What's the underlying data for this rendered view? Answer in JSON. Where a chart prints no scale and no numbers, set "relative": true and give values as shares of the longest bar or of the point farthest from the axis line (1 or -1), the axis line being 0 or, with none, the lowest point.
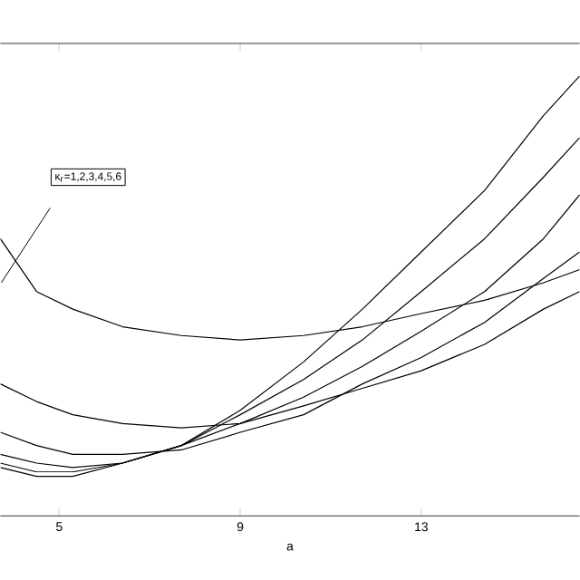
{
  "chart_data": {
    "type": "line",
    "relative": true,
    "xlabel": "a",
    "x": [
      3.7,
      4.5,
      5.3,
      6.4,
      7.7,
      9,
      10.4,
      11.7,
      13,
      14.4,
      15.7,
      16.5
    ],
    "xlim": [
      3.7,
      16.5
    ],
    "xticks": [
      5,
      9,
      13
    ],
    "series": [
      {
        "color": "#000000",
        "values": [
          0.63,
          0.51,
          0.47,
          0.43,
          0.41,
          0.4,
          0.41,
          0.43,
          0.46,
          0.49,
          0.53,
          0.56
        ]
      },
      {
        "color": "#000000",
        "values": [
          0.3,
          0.26,
          0.23,
          0.21,
          0.2,
          0.21,
          0.25,
          0.29,
          0.33,
          0.39,
          0.47,
          0.51
        ]
      },
      {
        "color": "#000000",
        "values": [
          0.19,
          0.16,
          0.14,
          0.14,
          0.15,
          0.19,
          0.23,
          0.3,
          0.36,
          0.44,
          0.54,
          0.6
        ]
      },
      {
        "color": "#000000",
        "values": [
          0.14,
          0.12,
          0.11,
          0.12,
          0.16,
          0.21,
          0.27,
          0.34,
          0.42,
          0.51,
          0.63,
          0.73
        ]
      },
      {
        "color": "#000000",
        "values": [
          0.12,
          0.1,
          0.1,
          0.12,
          0.16,
          0.23,
          0.31,
          0.4,
          0.51,
          0.63,
          0.77,
          0.86
        ]
      },
      {
        "color": "#000000",
        "values": [
          0.11,
          0.09,
          0.09,
          0.12,
          0.16,
          0.24,
          0.35,
          0.47,
          0.6,
          0.74,
          0.91,
          1
        ]
      }
    ],
    "annotations": [
      "κ$_{r}$=1,2,3,4,5,6"
    ]
  }
}
